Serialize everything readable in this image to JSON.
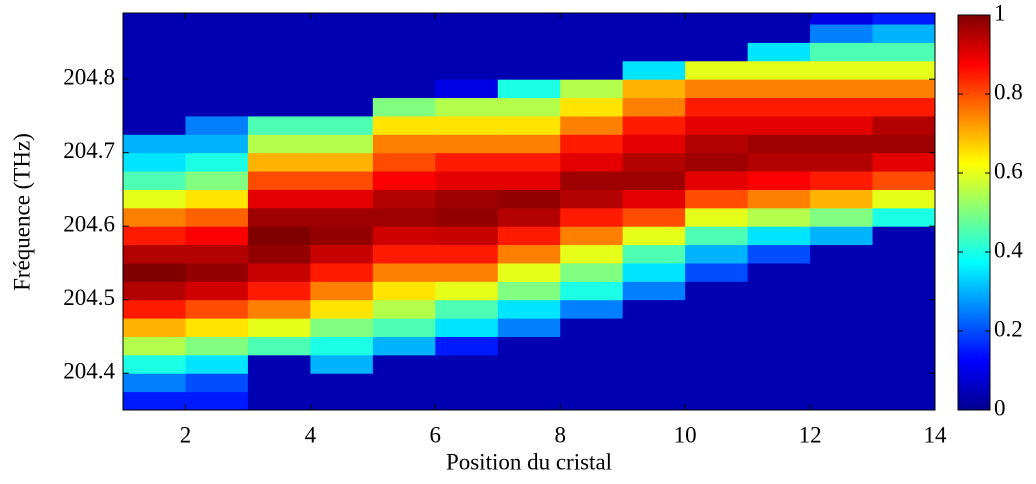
{
  "chart_data": {
    "type": "heatmap",
    "xlabel": "Position du cristal",
    "ylabel": "Fréquence (THz)",
    "x_edges": [
      1,
      2,
      3,
      4,
      5,
      6,
      7,
      8,
      9,
      10,
      11,
      12,
      13,
      14
    ],
    "y_edges": [
      204.35,
      204.375,
      204.4,
      204.425,
      204.45,
      204.475,
      204.5,
      204.525,
      204.55,
      204.575,
      204.6,
      204.625,
      204.65,
      204.675,
      204.7,
      204.725,
      204.75,
      204.775,
      204.8,
      204.825,
      204.85,
      204.875,
      204.89
    ],
    "z": [
      [
        0.15,
        0.25,
        0.4,
        0.55,
        0.7,
        0.85,
        0.95,
        1,
        0.95,
        0.85,
        0.75,
        0.6,
        0.45,
        0.35,
        0.3,
        0.05,
        0.05,
        0.05,
        0.05,
        0.05,
        0.05,
        0.05
      ],
      [
        0.15,
        0.2,
        0.35,
        0.5,
        0.65,
        0.8,
        0.92,
        0.98,
        0.95,
        0.88,
        0.78,
        0.65,
        0.5,
        0.4,
        0.3,
        0.25,
        0.05,
        0.05,
        0.05,
        0.05,
        0.05,
        0.05
      ],
      [
        0.05,
        0.05,
        0.05,
        0.45,
        0.6,
        0.75,
        0.85,
        0.93,
        0.98,
        1,
        0.97,
        0.9,
        0.8,
        0.7,
        0.55,
        0.45,
        0.05,
        0.05,
        0.05,
        0.05,
        0.05,
        0.05
      ],
      [
        0.05,
        0.05,
        0.3,
        0.4,
        0.5,
        0.65,
        0.75,
        0.85,
        0.93,
        0.98,
        0.97,
        0.9,
        0.8,
        0.7,
        0.55,
        0.45,
        0.05,
        0.05,
        0.05,
        0.05,
        0.05,
        0.05
      ],
      [
        0.05,
        0.05,
        0.05,
        0.3,
        0.45,
        0.55,
        0.65,
        0.75,
        0.85,
        0.92,
        0.97,
        0.95,
        0.88,
        0.8,
        0.75,
        0.65,
        0.5,
        0.05,
        0.05,
        0.05,
        0.05,
        0.05
      ],
      [
        0.05,
        0.05,
        0.05,
        0.15,
        0.35,
        0.45,
        0.6,
        0.75,
        0.85,
        0.93,
        0.98,
        0.97,
        0.9,
        0.85,
        0.75,
        0.65,
        0.55,
        0.1,
        0.05,
        0.05,
        0.05,
        0.05
      ],
      [
        0.05,
        0.05,
        0.05,
        0.05,
        0.25,
        0.35,
        0.5,
        0.6,
        0.75,
        0.85,
        0.95,
        0.98,
        0.9,
        0.85,
        0.75,
        0.65,
        0.55,
        0.4,
        0.05,
        0.05,
        0.05,
        0.05
      ],
      [
        0.05,
        0.05,
        0.05,
        0.05,
        0.05,
        0.25,
        0.4,
        0.5,
        0.6,
        0.75,
        0.85,
        0.95,
        0.97,
        0.9,
        0.85,
        0.75,
        0.65,
        0.55,
        0.05,
        0.05,
        0.05,
        0.05
      ],
      [
        0.05,
        0.05,
        0.05,
        0.05,
        0.05,
        0.05,
        0.25,
        0.35,
        0.45,
        0.6,
        0.8,
        0.9,
        0.97,
        0.95,
        0.9,
        0.85,
        0.75,
        0.7,
        0.35,
        0.05,
        0.05,
        0.05
      ],
      [
        0.05,
        0.05,
        0.05,
        0.05,
        0.05,
        0.05,
        0.05,
        0.2,
        0.3,
        0.45,
        0.6,
        0.8,
        0.9,
        0.97,
        0.95,
        0.9,
        0.85,
        0.75,
        0.6,
        0.05,
        0.05,
        0.05
      ],
      [
        0.05,
        0.05,
        0.05,
        0.05,
        0.05,
        0.05,
        0.05,
        0.05,
        0.2,
        0.35,
        0.55,
        0.75,
        0.88,
        0.95,
        0.97,
        0.9,
        0.85,
        0.75,
        0.6,
        0.35,
        0.05,
        0.05
      ],
      [
        0.05,
        0.05,
        0.05,
        0.05,
        0.05,
        0.05,
        0.05,
        0.05,
        0.05,
        0.3,
        0.5,
        0.7,
        0.85,
        0.95,
        0.97,
        0.9,
        0.85,
        0.75,
        0.6,
        0.45,
        0.25,
        0.1
      ],
      [
        0.05,
        0.05,
        0.05,
        0.05,
        0.05,
        0.05,
        0.05,
        0.05,
        0.05,
        0.05,
        0.4,
        0.6,
        0.8,
        0.9,
        0.97,
        0.95,
        0.85,
        0.75,
        0.6,
        0.45,
        0.3,
        0.15
      ]
    ],
    "xlim": [
      1,
      14
    ],
    "ylim": [
      204.35,
      204.89
    ],
    "xticks": [
      2,
      4,
      6,
      8,
      10,
      12,
      14
    ],
    "yticks": [
      204.4,
      204.5,
      204.6,
      204.7,
      204.8
    ],
    "colormap": "jet",
    "clim": [
      0,
      1
    ],
    "cticks": [
      0,
      0.2,
      0.4,
      0.6,
      0.8,
      1
    ]
  }
}
